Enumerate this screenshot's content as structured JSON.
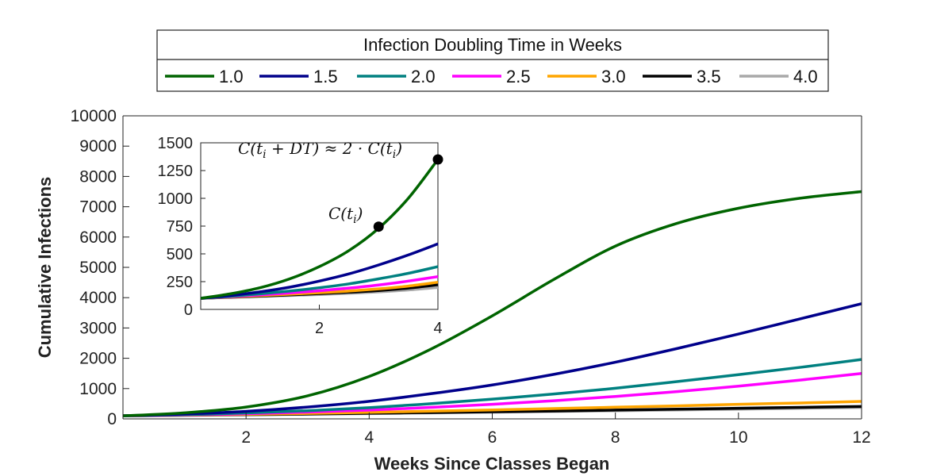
{
  "chart_data": {
    "type": "line",
    "xlabel": "Weeks Since Classes Began",
    "ylabel": "Cumulative Infections",
    "xlim": [
      0,
      12
    ],
    "ylim": [
      0,
      10000
    ],
    "xticks": [
      2,
      4,
      6,
      8,
      10,
      12
    ],
    "yticks": [
      0,
      1000,
      2000,
      3000,
      4000,
      5000,
      6000,
      7000,
      8000,
      9000,
      10000
    ],
    "legend": {
      "title": "Infection Doubling Time in Weeks",
      "placement": "top-outside"
    },
    "x": [
      0,
      1,
      2,
      3,
      4,
      5,
      6,
      7,
      8,
      9,
      10,
      11,
      12
    ],
    "series": [
      {
        "name": "1.0",
        "color": "#006400",
        "values": [
          100,
          200,
          390,
          760,
          1400,
          2300,
          3400,
          4600,
          5700,
          6450,
          6950,
          7280,
          7500
        ]
      },
      {
        "name": "1.5",
        "color": "#00008B",
        "values": [
          100,
          160,
          250,
          390,
          580,
          830,
          1120,
          1470,
          1870,
          2320,
          2800,
          3300,
          3800
        ]
      },
      {
        "name": "2.0",
        "color": "#008080",
        "values": [
          100,
          140,
          195,
          270,
          370,
          500,
          650,
          820,
          1010,
          1230,
          1460,
          1700,
          1960
        ]
      },
      {
        "name": "2.5",
        "color": "#FF00FF",
        "values": [
          100,
          130,
          170,
          225,
          290,
          380,
          480,
          600,
          740,
          900,
          1080,
          1280,
          1500
        ]
      },
      {
        "name": "3.0",
        "color": "#FFA500",
        "values": [
          100,
          125,
          150,
          180,
          215,
          255,
          295,
          340,
          385,
          430,
          480,
          525,
          575
        ]
      },
      {
        "name": "3.5",
        "color": "#000000",
        "values": [
          100,
          120,
          140,
          160,
          185,
          210,
          235,
          260,
          290,
          320,
          350,
          380,
          410
        ]
      },
      {
        "name": "4.0",
        "color": "#A9A9A9",
        "values": [
          100,
          115,
          135,
          155,
          175,
          195,
          220,
          245,
          270,
          295,
          320,
          350,
          380
        ]
      }
    ],
    "inset": {
      "xlim": [
        0,
        4
      ],
      "ylim": [
        0,
        1500
      ],
      "xticks": [
        2,
        4
      ],
      "yticks": [
        0,
        250,
        500,
        750,
        1000,
        1250,
        1500
      ],
      "x": [
        0,
        0.5,
        1,
        1.5,
        2,
        2.5,
        3,
        3.5,
        4
      ],
      "series": [
        {
          "name": "1.0",
          "values": [
            100,
            140,
            195,
            275,
            385,
            530,
            730,
            1000,
            1350
          ]
        },
        {
          "name": "1.5",
          "values": [
            100,
            125,
            158,
            200,
            255,
            320,
            400,
            490,
            590
          ]
        },
        {
          "name": "2.0",
          "values": [
            100,
            118,
            140,
            165,
            195,
            230,
            275,
            325,
            385
          ]
        },
        {
          "name": "2.5",
          "values": [
            100,
            114,
            130,
            148,
            168,
            192,
            220,
            255,
            295
          ]
        },
        {
          "name": "3.0",
          "values": [
            100,
            112,
            124,
            137,
            150,
            165,
            185,
            210,
            245
          ]
        },
        {
          "name": "3.5",
          "values": [
            100,
            110,
            120,
            130,
            142,
            155,
            170,
            192,
            222
          ]
        },
        {
          "name": "4.0",
          "values": [
            100,
            108,
            116,
            125,
            134,
            145,
            158,
            175,
            198
          ]
        }
      ],
      "points": [
        {
          "x": 3,
          "y": 745,
          "label": "C(t_i)"
        },
        {
          "x": 4,
          "y": 1350,
          "label": "C(t_i + DT) ≈ 2 · C(t_i)"
        }
      ]
    }
  }
}
